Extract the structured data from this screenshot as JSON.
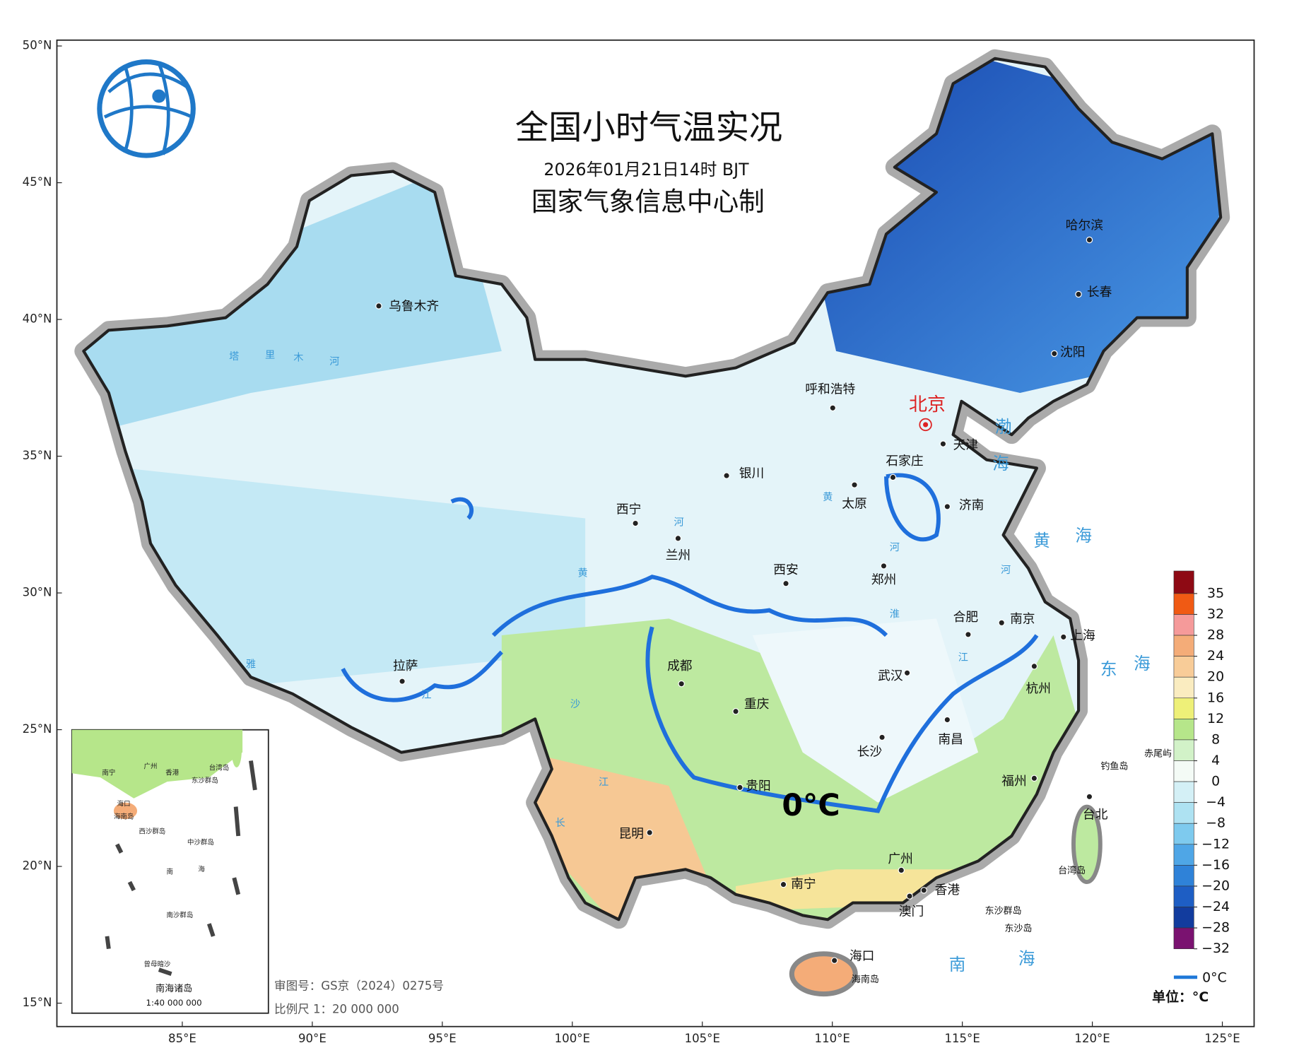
{
  "header": {
    "title": "全国小时气温实况",
    "subtitle": "2026年01月21日14时 BJT",
    "producer": "国家气象信息中心制"
  },
  "axes": {
    "yticks": [
      {
        "value": 50,
        "label": "50°N"
      },
      {
        "value": 45,
        "label": "45°N"
      },
      {
        "value": 40,
        "label": "40°N"
      },
      {
        "value": 35,
        "label": "35°N"
      },
      {
        "value": 30,
        "label": "30°N"
      },
      {
        "value": 25,
        "label": "25°N"
      },
      {
        "value": 20,
        "label": "20°N"
      },
      {
        "value": 15,
        "label": "15°N"
      }
    ],
    "xticks": [
      {
        "value": 85,
        "label": "85°E"
      },
      {
        "value": 90,
        "label": "90°E"
      },
      {
        "value": 95,
        "label": "95°E"
      },
      {
        "value": 100,
        "label": "100°E"
      },
      {
        "value": 105,
        "label": "105°E"
      },
      {
        "value": 110,
        "label": "110°E"
      },
      {
        "value": 115,
        "label": "115°E"
      },
      {
        "value": 120,
        "label": "120°E"
      },
      {
        "value": 125,
        "label": "125°E"
      }
    ]
  },
  "capital": "北京",
  "cities": [
    "乌鲁木齐",
    "哈尔滨",
    "长春",
    "沈阳",
    "呼和浩特",
    "天津",
    "石家庄",
    "银川",
    "太原",
    "济南",
    "西宁",
    "兰州",
    "西安",
    "郑州",
    "合肥",
    "南京",
    "上海",
    "拉萨",
    "成都",
    "武汉",
    "杭州",
    "重庆",
    "长沙",
    "南昌",
    "贵阳",
    "福州",
    "台北",
    "昆明",
    "广州",
    "南宁",
    "香港",
    "澳门",
    "海口"
  ],
  "islands": [
    "海南岛",
    "东沙群岛",
    "东沙岛",
    "钓鱼岛",
    "赤尾屿",
    "台湾岛"
  ],
  "seas": [
    [
      "渤",
      "海"
    ],
    [
      "黄",
      "海"
    ],
    [
      "东",
      "海"
    ],
    [
      "南",
      "海"
    ]
  ],
  "rivers": [
    [
      "塔",
      "里",
      "木",
      "河"
    ],
    [
      "黄",
      "河"
    ],
    [
      "黄",
      "河"
    ],
    [
      "淮",
      "河"
    ],
    [
      "雅",
      "江"
    ],
    [
      "沙",
      "江"
    ],
    [
      "长",
      "江"
    ]
  ],
  "annotation": "0°C",
  "inset": {
    "labels": [
      "南宁",
      "广州",
      "香港",
      "台湾岛",
      "东沙群岛",
      "海口",
      "海南岛",
      "西沙群岛",
      "中沙群岛",
      "南",
      "海",
      "南沙群岛",
      "曾母暗沙"
    ],
    "title": "南海诸岛",
    "scale": "1:40 000 000"
  },
  "footer": {
    "review": "审图号：GS京（2024）0275号",
    "scale": "比例尺 1：20 000 000"
  },
  "legend": {
    "levels": [
      35,
      32,
      28,
      24,
      20,
      16,
      12,
      8,
      4,
      0,
      {
        "value": -4,
        "label": "−4"
      },
      {
        "value": -8,
        "label": "−8"
      },
      {
        "value": -12,
        "label": "−12"
      },
      {
        "value": -16,
        "label": "−16"
      },
      {
        "value": -20,
        "label": "−20"
      },
      {
        "value": -24,
        "label": "−24"
      },
      {
        "value": -28,
        "label": "−28"
      },
      {
        "value": -32,
        "label": "−32"
      }
    ],
    "colors": [
      "#8e0a14",
      "#f05a14",
      "#f59a9a",
      "#f4ac78",
      "#f8cc98",
      "#faecc0",
      "#eef078",
      "#b6e68a",
      "#d2f2c8",
      "#f4fbf6",
      "#d4f0f6",
      "#aee2f2",
      "#7ecaee",
      "#4fa6e6",
      "#2f82d8",
      "#1e5ec4",
      "#123c9e",
      "#7a1270"
    ],
    "line_label": "0°C",
    "unit": "单位：°C"
  }
}
